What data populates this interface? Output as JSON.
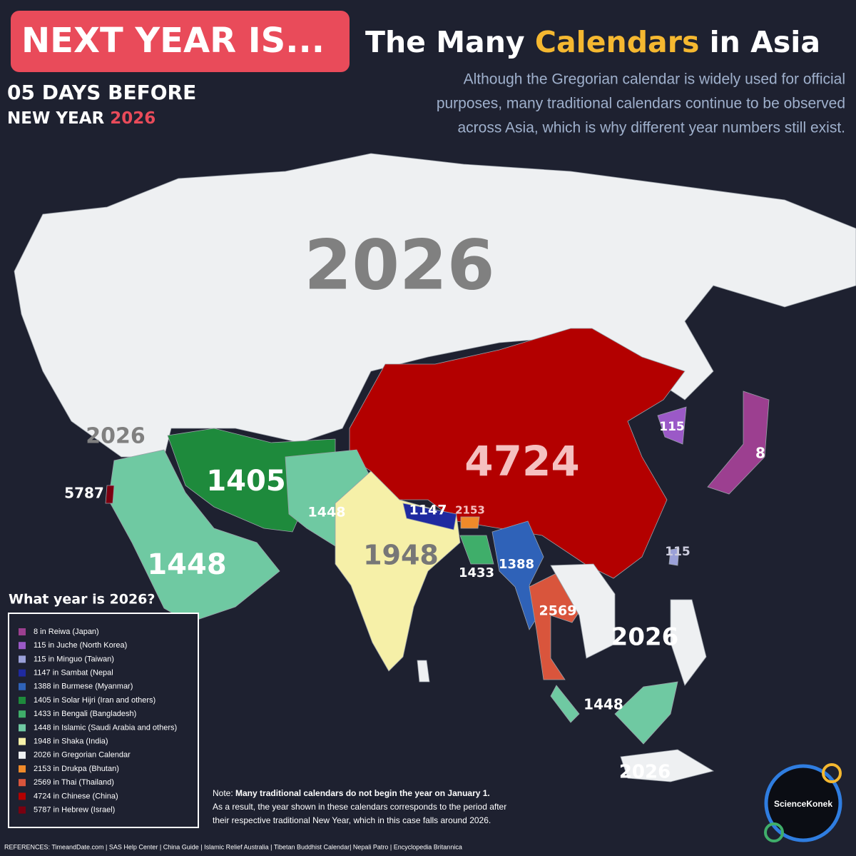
{
  "header": {
    "badge": "NEXT YEAR IS...",
    "title_start": "The Many ",
    "title_highlight": "Calendars",
    "title_end": " in Asia",
    "countdown_line1": "05 DAYS BEFORE",
    "countdown_line2": "NEW YEAR ",
    "countdown_year": "2026",
    "subtitle_lines": [
      "Although the Gregorian calendar is widely used for official",
      "purposes, many traditional calendars continue to be observed",
      "across Asia, which is why different year numbers still exist."
    ]
  },
  "map_labels": [
    "2026",
    "2026",
    "5787",
    "1405",
    "1448",
    "1448",
    "1948",
    "4724",
    "1147",
    "2153",
    "1433",
    "1388",
    "2569",
    "115",
    "115",
    "8",
    "2026",
    "1448",
    "2026"
  ],
  "legend": {
    "title": "What year is 2026?",
    "items": [
      {
        "label": "8 in Reiwa (Japan)",
        "color": "#9c3f90"
      },
      {
        "label": "115 in Juche (North Korea)",
        "color": "#9b59c7"
      },
      {
        "label": "115 in Minguo (Taiwan)",
        "color": "#9aa0d8"
      },
      {
        "label": "1147 in Sambat (Nepal",
        "color": "#1f2aa0"
      },
      {
        "label": "1388 in Burmese (Myanmar)",
        "color": "#2f62b8"
      },
      {
        "label": "1405 in Solar Hijri (Iran and others)",
        "color": "#1e8a3c"
      },
      {
        "label": "1433 in Bengali (Bangladesh)",
        "color": "#3fae6a"
      },
      {
        "label": "1448 in Islamic (Saudi Arabia and others)",
        "color": "#6fc9a2"
      },
      {
        "label": "1948 in Shaka (India)",
        "color": "#f6f0a8"
      },
      {
        "label": "2026 in Gregorian Calendar",
        "color": "#eef0f2"
      },
      {
        "label": "2153 in Drukpa (Bhutan)",
        "color": "#f08a2a"
      },
      {
        "label": "2569 in Thai (Thailand)",
        "color": "#d9553c"
      },
      {
        "label": "4724 in Chinese (China)",
        "color": "#b30000"
      },
      {
        "label": "5787 in Hebrew (Israel)",
        "color": "#7a0010"
      }
    ]
  },
  "note": {
    "lead": "Note: ",
    "bold": "Many traditional calendars do not begin the year on January 1.",
    "line2": "As a result, the year shown in these calendars corresponds to the period after",
    "line3": "their respective traditional New Year, which in this case falls around 2026."
  },
  "references": "REFERENCES: TimeandDate.com | SAS Help Center | China Guide | Islamic Relief Australia | Tibetan Buddhist Calendar| Nepali Patro | Encyclopedia  Britannica",
  "brand": "ScienceKonek"
}
